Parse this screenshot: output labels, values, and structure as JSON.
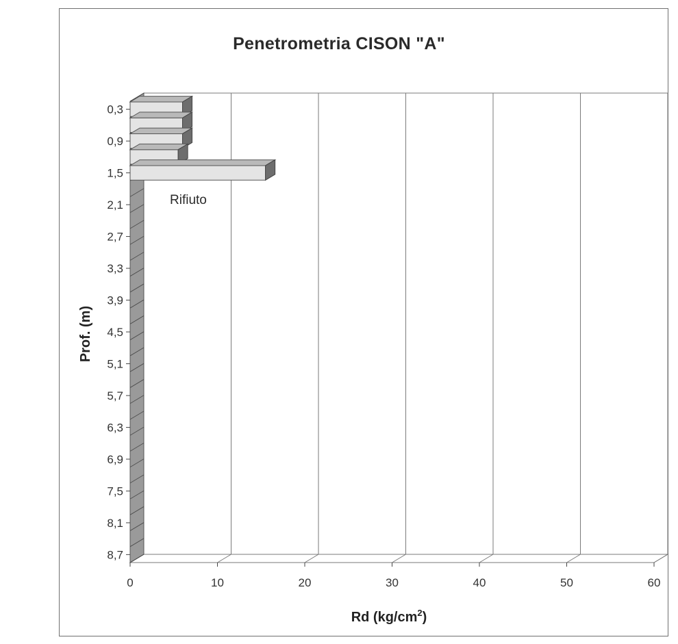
{
  "chart_data": {
    "type": "bar",
    "orientation": "horizontal",
    "title": "Penetrometria CISON \"A\"",
    "xlabel": "Rd (kg/cm",
    "xlabel_sup": "2",
    "xlabel_end": ")",
    "ylabel": "Prof. (m)",
    "xlim": [
      0,
      60
    ],
    "x_ticks": [
      "0",
      "10",
      "20",
      "30",
      "40",
      "50",
      "60"
    ],
    "y_tick_labels": [
      "0,3",
      "0,9",
      "1,5",
      "2,1",
      "2,7",
      "3,3",
      "3,9",
      "4,5",
      "5,1",
      "5,7",
      "6,3",
      "6,9",
      "7,5",
      "8,1",
      "8,7"
    ],
    "categories": [
      "0,3",
      "0,6",
      "0,9",
      "1,2",
      "1,5"
    ],
    "values": [
      6,
      6,
      6,
      5.5,
      15.5
    ],
    "grid": true,
    "annotations": [
      {
        "text": "Rifiuto"
      }
    ],
    "colors": {
      "bar_front": "#e4e4e4",
      "bar_top": "#b9b9b9",
      "bar_side": "#6d6d6d",
      "wall": "#9a9a9a",
      "grid": "#7a7a7a",
      "frame": "#6f6f6f"
    }
  }
}
